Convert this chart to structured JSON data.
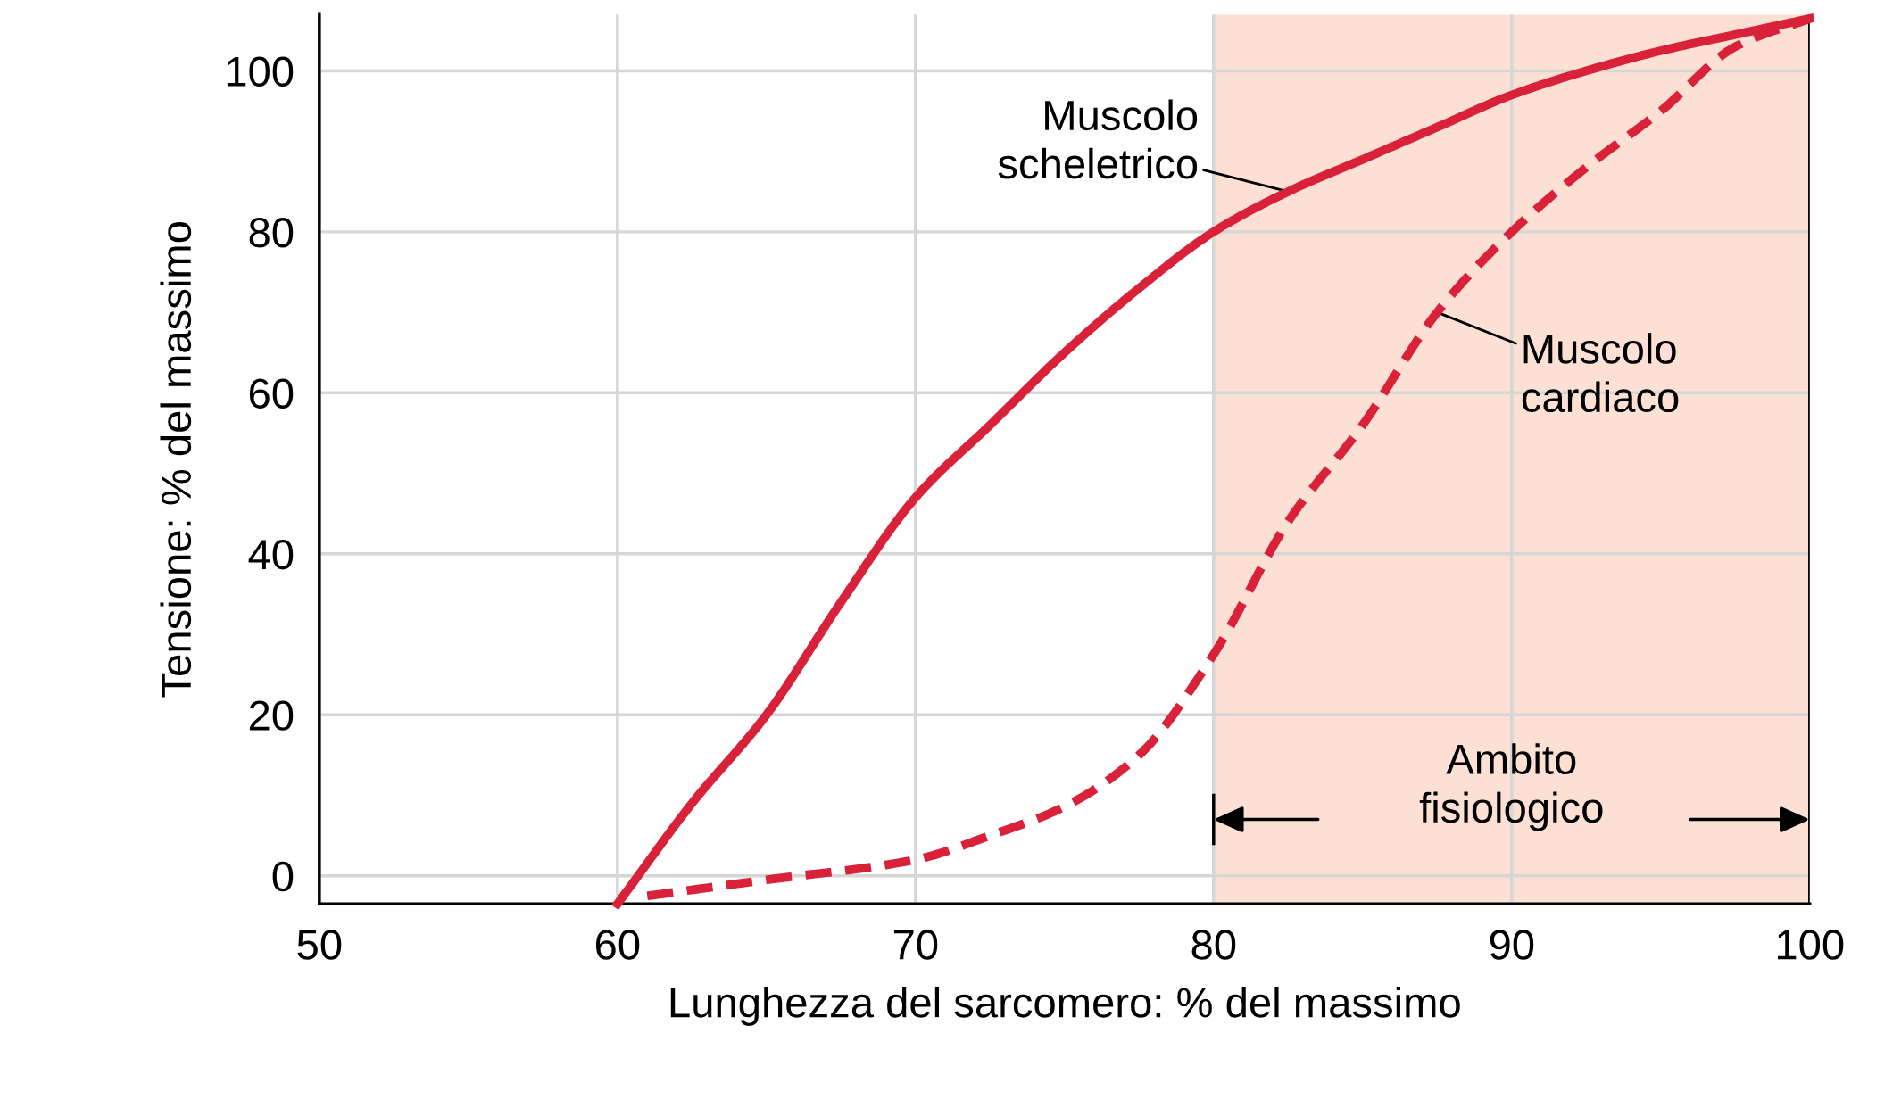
{
  "chart_data": {
    "type": "line",
    "xlabel": "Lunghezza del sarcomero: % del massimo",
    "ylabel": "Tensione: % del massimo",
    "xlim": [
      50,
      100
    ],
    "xticks": [
      50,
      60,
      70,
      80,
      90,
      100
    ],
    "ylim": [
      -3.5,
      107
    ],
    "yticks": [
      0,
      20,
      40,
      60,
      80,
      100
    ],
    "grid": true,
    "legend": false,
    "series": [
      {
        "color": "#d9213a",
        "line_style": "solid",
        "x": [
          60,
          62.5,
          65,
          67.5,
          70,
          72.5,
          75,
          77.5,
          80,
          82.5,
          85,
          87.5,
          90,
          92.5,
          95,
          97.5,
          100
        ],
        "values": [
          -3.5,
          9,
          20,
          34,
          47,
          56,
          65,
          73,
          80,
          85,
          89,
          93,
          97,
          100,
          102.5,
          104.5,
          106.5
        ]
      },
      {
        "color": "#d9213a",
        "line_style": "dashed",
        "x": [
          61,
          65,
          70,
          72.5,
          75,
          77.5,
          80,
          82.5,
          85,
          87.5,
          90,
          92.5,
          95,
          97.5,
          100
        ],
        "values": [
          -2.5,
          -0.5,
          2,
          5,
          8.6,
          15,
          27.5,
          44,
          56,
          70,
          80,
          88,
          95,
          103,
          106.5
        ]
      }
    ],
    "bands": [
      {
        "axis": "x",
        "from": 80,
        "to": 100,
        "label": "Ambito\nfisiologico",
        "color": "#fbe0d3"
      }
    ],
    "annotations": [
      {
        "text": "Muscolo\nscheletrico",
        "x": 82.5,
        "y": 85
      },
      {
        "text": "Muscolo\ncardiaco",
        "x": 87.5,
        "y": 70
      }
    ]
  }
}
